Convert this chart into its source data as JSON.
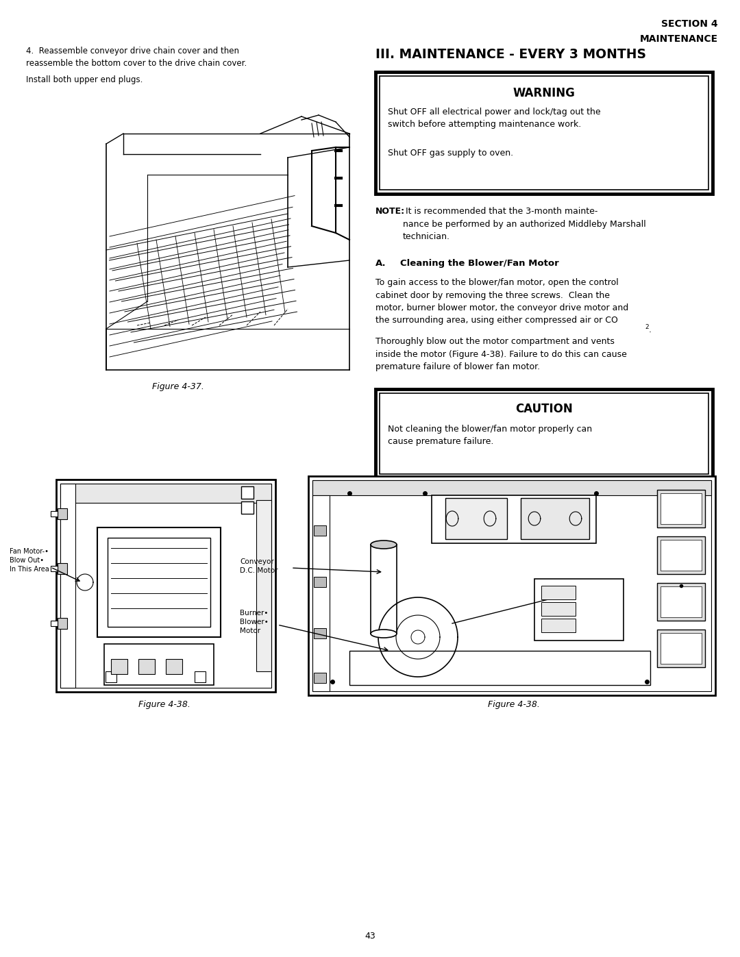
{
  "page_width": 10.8,
  "page_height": 13.97,
  "background_color": "#ffffff",
  "header_right_line1": "SECTION 4",
  "header_right_line2": "MAINTENANCE",
  "section_title": "III. MAINTENANCE - EVERY 3 MONTHS",
  "warning_title": "WARNING",
  "warning_body1": "Shut OFF all electrical power and lock/tag out the\nswitch before attempting maintenance work.",
  "warning_body2": "Shut OFF gas supply to oven.",
  "note_bold": "NOTE:",
  "note_body": " It is recommended that the 3-month mainte-\nnance be performed by an authorized Middleby Marshall\ntechnician.",
  "sub_label": "A.",
  "sub_title": "Cleaning the Blower/Fan Motor",
  "body1": "To gain access to the blower/fan motor, open the control\ncabinet door by removing the three screws.  Clean the\nmotor, burner blower motor, the conveyor drive motor and\nthe surrounding area, using either compressed air or CO",
  "body2": ".\nThoroughly blow out the motor compartment and vents\ninside the motor (Figure 4-38). Failure to do this can cause\npremature failure of blower fan motor.",
  "caution_title": "CAUTION",
  "caution_body": "Not cleaning the blower/fan motor properly can\ncause premature failure.",
  "fig37_caption": "Figure 4-37.",
  "fig38_caption": "Figure 4-38.",
  "left_text1": "4.  Reassemble conveyor drive chain cover and then\nreassemble the bottom cover to the drive chain cover.",
  "left_text2": "Install both upper end plugs.",
  "page_number": "43",
  "label_fan_motor": "Fan Motor-•\nBlow Out•\nIn This Area",
  "label_conveyor": "Conveyor\nD.C. Motor",
  "label_burner": "Burner•\nBlower•\nMotor"
}
